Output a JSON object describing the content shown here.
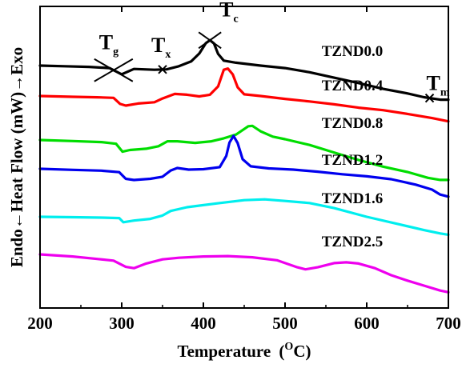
{
  "chart_data": {
    "type": "line",
    "xlabel": "Temperature",
    "xlabel_unit": "(",
    "xlabel_unit_sup": "O",
    "xlabel_unit_end": "C)",
    "ylabel": "Endo←Heat Flow (mW)→Exo",
    "xlim": [
      200,
      700
    ],
    "x_ticks": [
      "200",
      "300",
      "400",
      "500",
      "600",
      "700"
    ],
    "y_ticks_shown": false,
    "grid": false,
    "legend": "none",
    "series": [
      {
        "name": "TZND0.0",
        "color": "#000000",
        "points": [
          [
            200,
            0.0
          ],
          [
            230,
            -0.3
          ],
          [
            260,
            -0.6
          ],
          [
            285,
            -1.2
          ],
          [
            300,
            -4.2
          ],
          [
            315,
            -1.6
          ],
          [
            340,
            -2.0
          ],
          [
            355,
            -1.8
          ],
          [
            370,
            -0.3
          ],
          [
            385,
            2.0
          ],
          [
            395,
            5.8
          ],
          [
            403,
            10.8
          ],
          [
            408,
            12.2
          ],
          [
            413,
            10.6
          ],
          [
            418,
            5.6
          ],
          [
            425,
            2.4
          ],
          [
            440,
            1.4
          ],
          [
            470,
            0.0
          ],
          [
            500,
            -1.2
          ],
          [
            530,
            -3.2
          ],
          [
            560,
            -5.8
          ],
          [
            590,
            -8.4
          ],
          [
            620,
            -11.2
          ],
          [
            650,
            -13.4
          ],
          [
            670,
            -15.2
          ],
          [
            690,
            -16.4
          ],
          [
            700,
            -16.4
          ]
        ]
      },
      {
        "name": "TZND0.4",
        "color": "#ff0000",
        "points": [
          [
            200,
            0.0
          ],
          [
            240,
            -0.4
          ],
          [
            270,
            -0.6
          ],
          [
            290,
            -0.9
          ],
          [
            298,
            -3.8
          ],
          [
            305,
            -4.6
          ],
          [
            320,
            -3.6
          ],
          [
            340,
            -3.0
          ],
          [
            350,
            -1.2
          ],
          [
            365,
            1.0
          ],
          [
            380,
            0.6
          ],
          [
            395,
            -0.2
          ],
          [
            408,
            0.6
          ],
          [
            418,
            4.6
          ],
          [
            425,
            12.6
          ],
          [
            430,
            13.2
          ],
          [
            436,
            10.4
          ],
          [
            442,
            4.2
          ],
          [
            450,
            0.8
          ],
          [
            470,
            0.0
          ],
          [
            500,
            -1.4
          ],
          [
            530,
            -2.6
          ],
          [
            560,
            -4.0
          ],
          [
            590,
            -5.6
          ],
          [
            620,
            -6.8
          ],
          [
            650,
            -8.6
          ],
          [
            680,
            -10.6
          ],
          [
            700,
            -12.2
          ]
        ]
      },
      {
        "name": "TZND0.8",
        "color": "#00dd00",
        "points": [
          [
            200,
            0.0
          ],
          [
            240,
            -0.5
          ],
          [
            275,
            -1.0
          ],
          [
            293,
            -1.8
          ],
          [
            301,
            -5.6
          ],
          [
            310,
            -4.8
          ],
          [
            330,
            -4.2
          ],
          [
            345,
            -3.0
          ],
          [
            356,
            -0.6
          ],
          [
            368,
            -0.6
          ],
          [
            390,
            -1.4
          ],
          [
            410,
            -0.6
          ],
          [
            425,
            0.8
          ],
          [
            440,
            2.6
          ],
          [
            455,
            6.6
          ],
          [
            460,
            6.8
          ],
          [
            470,
            4.2
          ],
          [
            485,
            1.6
          ],
          [
            500,
            0.4
          ],
          [
            530,
            -2.4
          ],
          [
            560,
            -6.0
          ],
          [
            590,
            -9.6
          ],
          [
            620,
            -12.8
          ],
          [
            650,
            -15.4
          ],
          [
            675,
            -18.2
          ],
          [
            690,
            -19.2
          ],
          [
            700,
            -19.2
          ]
        ]
      },
      {
        "name": "TZND1.2",
        "color": "#0000ee",
        "points": [
          [
            200,
            0.0
          ],
          [
            240,
            -0.5
          ],
          [
            275,
            -0.9
          ],
          [
            297,
            -1.6
          ],
          [
            305,
            -4.8
          ],
          [
            315,
            -5.4
          ],
          [
            335,
            -4.8
          ],
          [
            350,
            -3.8
          ],
          [
            360,
            -0.8
          ],
          [
            368,
            0.4
          ],
          [
            382,
            -0.4
          ],
          [
            400,
            -0.2
          ],
          [
            420,
            0.8
          ],
          [
            428,
            6.2
          ],
          [
            432,
            12.6
          ],
          [
            437,
            15.8
          ],
          [
            442,
            12.4
          ],
          [
            448,
            4.6
          ],
          [
            458,
            1.2
          ],
          [
            480,
            0.2
          ],
          [
            510,
            -0.4
          ],
          [
            540,
            -1.4
          ],
          [
            570,
            -2.6
          ],
          [
            600,
            -3.6
          ],
          [
            630,
            -5.0
          ],
          [
            660,
            -7.6
          ],
          [
            680,
            -10.0
          ],
          [
            690,
            -12.4
          ],
          [
            700,
            -13.4
          ]
        ]
      },
      {
        "name": "TZND1.6",
        "color": "#00eeee",
        "points": [
          [
            200,
            0.0
          ],
          [
            240,
            -0.2
          ],
          [
            275,
            -0.4
          ],
          [
            297,
            -0.6
          ],
          [
            302,
            -2.6
          ],
          [
            315,
            -1.8
          ],
          [
            335,
            -1.0
          ],
          [
            350,
            0.6
          ],
          [
            360,
            2.8
          ],
          [
            380,
            4.6
          ],
          [
            420,
            6.6
          ],
          [
            450,
            8.0
          ],
          [
            475,
            8.4
          ],
          [
            500,
            7.6
          ],
          [
            530,
            6.6
          ],
          [
            560,
            4.2
          ],
          [
            600,
            0.0
          ],
          [
            640,
            -3.6
          ],
          [
            670,
            -6.4
          ],
          [
            690,
            -8.0
          ],
          [
            700,
            -8.6
          ]
        ]
      },
      {
        "name": "TZND2.5",
        "color": "#ee00ee",
        "points": [
          [
            200,
            0.0
          ],
          [
            240,
            -1.0
          ],
          [
            270,
            -2.2
          ],
          [
            290,
            -3.0
          ],
          [
            305,
            -6.0
          ],
          [
            315,
            -6.6
          ],
          [
            330,
            -4.4
          ],
          [
            350,
            -2.4
          ],
          [
            370,
            -1.6
          ],
          [
            400,
            -1.0
          ],
          [
            430,
            -0.8
          ],
          [
            460,
            -1.4
          ],
          [
            490,
            -2.8
          ],
          [
            515,
            -6.2
          ],
          [
            525,
            -7.2
          ],
          [
            540,
            -6.2
          ],
          [
            560,
            -4.2
          ],
          [
            575,
            -3.8
          ],
          [
            590,
            -4.4
          ],
          [
            610,
            -6.6
          ],
          [
            630,
            -10.0
          ],
          [
            650,
            -12.6
          ],
          [
            670,
            -15.0
          ],
          [
            690,
            -17.4
          ],
          [
            700,
            -18.2
          ]
        ]
      }
    ],
    "annotations": [
      {
        "text": "T",
        "sub": "g",
        "x": 290,
        "series": 0,
        "kind": "crossed-lines"
      },
      {
        "text": "T",
        "sub": "x",
        "x": 350,
        "series": 0,
        "kind": "x-mark"
      },
      {
        "text": "T",
        "sub": "c",
        "x": 408,
        "series": 0,
        "kind": "crossed-lines"
      },
      {
        "text": "T",
        "sub": "m",
        "x": 677,
        "series": 0,
        "kind": "x-mark"
      }
    ]
  }
}
